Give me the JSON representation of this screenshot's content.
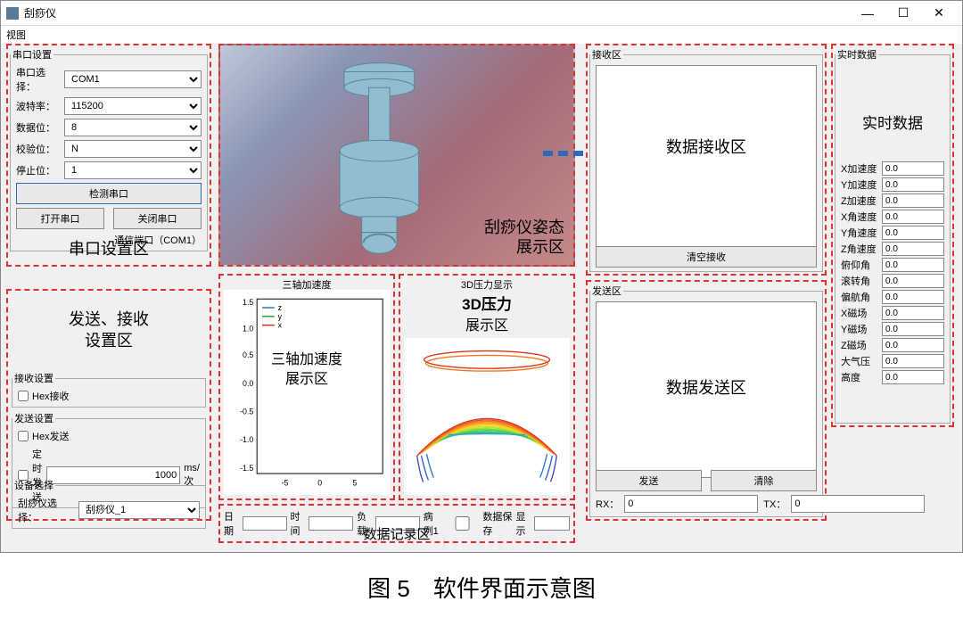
{
  "window": {
    "title": "刮痧仪",
    "min": "—",
    "max": "☐",
    "close": "✕"
  },
  "menubar": {
    "view": "视图"
  },
  "serial": {
    "legend": "串口设置",
    "port_label": "串口选择：",
    "port_value": "COM1",
    "baud_label": "波特率：",
    "baud_value": "115200",
    "data_label": "数据位：",
    "data_value": "8",
    "parity_label": "校验位：",
    "parity_value": "N",
    "stop_label": "停止位：",
    "stop_value": "1",
    "detect_btn": "检测串口",
    "open_btn": "打开串口",
    "close_btn": "关闭串口",
    "comm_info": "通信端口（COM1）",
    "region_label": "串口设置区"
  },
  "sendrecv": {
    "region_label1": "发送、接收",
    "region_label2": "设置区",
    "recv_legend": "接收设置",
    "hex_recv": "Hex接收",
    "send_legend": "发送设置",
    "hex_send": "Hex发送",
    "timed_send": "定时发送",
    "timed_value": "1000",
    "timed_unit": "ms/次",
    "device_legend": "设备选择",
    "device_label": "刮痧仪选择：",
    "device_value": "刮痧仪_1"
  },
  "attitude": {
    "label1": "刮痧仪姿态",
    "label2": "展示区",
    "bg_start": "#bfc8d8",
    "bg_end": "#c48a88",
    "model_color": "#9bc4d6"
  },
  "accel": {
    "title": "三轴加速度",
    "region_label1": "三轴加速度",
    "region_label2": "展示区",
    "legend_z": "z",
    "legend_y": "y",
    "legend_x": "x",
    "color_z": "#1f77b4",
    "color_y": "#2ca02c",
    "color_x": "#d62728",
    "xlim": [
      -8,
      8
    ],
    "ylim": [
      -1.6,
      1.6
    ],
    "xticks": [
      -5,
      0,
      5
    ],
    "yticks": [
      -1.5,
      -1.0,
      -0.5,
      0.0,
      0.5,
      1.0,
      1.5
    ]
  },
  "pressure": {
    "title": "3D压力显示",
    "region_label1": "3D压力",
    "region_label2": "展示区",
    "colormap": [
      "#3b4cc0",
      "#30a5c9",
      "#4dd14a",
      "#f6e61e",
      "#f0a61e",
      "#e0321e"
    ]
  },
  "recv": {
    "legend": "接收区",
    "region_label": "数据接收区",
    "clear_btn": "清空接收"
  },
  "send": {
    "legend": "发送区",
    "region_label": "数据发送区",
    "send_btn": "发送",
    "clear_btn": "清除",
    "rx_label": "RX：",
    "rx_value": "0",
    "tx_label": "TX：",
    "tx_value": "0"
  },
  "realtime": {
    "legend": "实时数据",
    "region_label": "实时数据",
    "fields": [
      {
        "label": "X加速度",
        "value": "0.0"
      },
      {
        "label": "Y加速度",
        "value": "0.0"
      },
      {
        "label": "Z加速度",
        "value": "0.0"
      },
      {
        "label": "X角速度",
        "value": "0.0"
      },
      {
        "label": "Y角速度",
        "value": "0.0"
      },
      {
        "label": "Z角速度",
        "value": "0.0"
      },
      {
        "label": "俯仰角",
        "value": "0.0"
      },
      {
        "label": "滚转角",
        "value": "0.0"
      },
      {
        "label": "偏航角",
        "value": "0.0"
      },
      {
        "label": "X磁场",
        "value": "0.0"
      },
      {
        "label": "Y磁场",
        "value": "0.0"
      },
      {
        "label": "Z磁场",
        "value": "0.0"
      },
      {
        "label": "大气压",
        "value": "0.0"
      },
      {
        "label": "高度",
        "value": "0.0"
      }
    ]
  },
  "record": {
    "date_label": "日期",
    "time_label": "时间",
    "load_label": "负载",
    "case_label": "病例1",
    "save_label": "数据保存",
    "show_label": "显示",
    "region_label": "数据记录区"
  },
  "caption": "图 5　软件界面示意图"
}
